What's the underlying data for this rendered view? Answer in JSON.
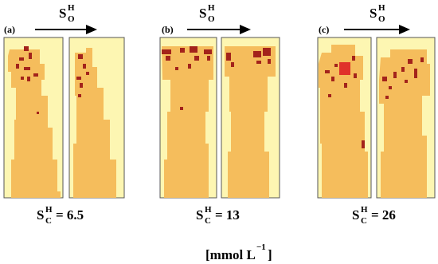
{
  "panels": [
    {
      "label": "(a)",
      "top": {
        "base": "S",
        "sup": "H",
        "sub": "O"
      },
      "bottom": {
        "base": "S",
        "sup": "H",
        "sub": "C",
        "value": "= 6.5"
      }
    },
    {
      "label": "(b)",
      "top": {
        "base": "S",
        "sup": "H",
        "sub": "O"
      },
      "bottom": {
        "base": "S",
        "sup": "H",
        "sub": "C",
        "value": "= 13"
      }
    },
    {
      "label": "(c)",
      "top": {
        "base": "S",
        "sup": "H",
        "sub": "O"
      },
      "bottom": {
        "base": "S",
        "sup": "H",
        "sub": "C",
        "value": "= 26"
      }
    }
  ],
  "units": {
    "base": "[mmol L",
    "sup": "−1",
    "end": "]"
  }
}
